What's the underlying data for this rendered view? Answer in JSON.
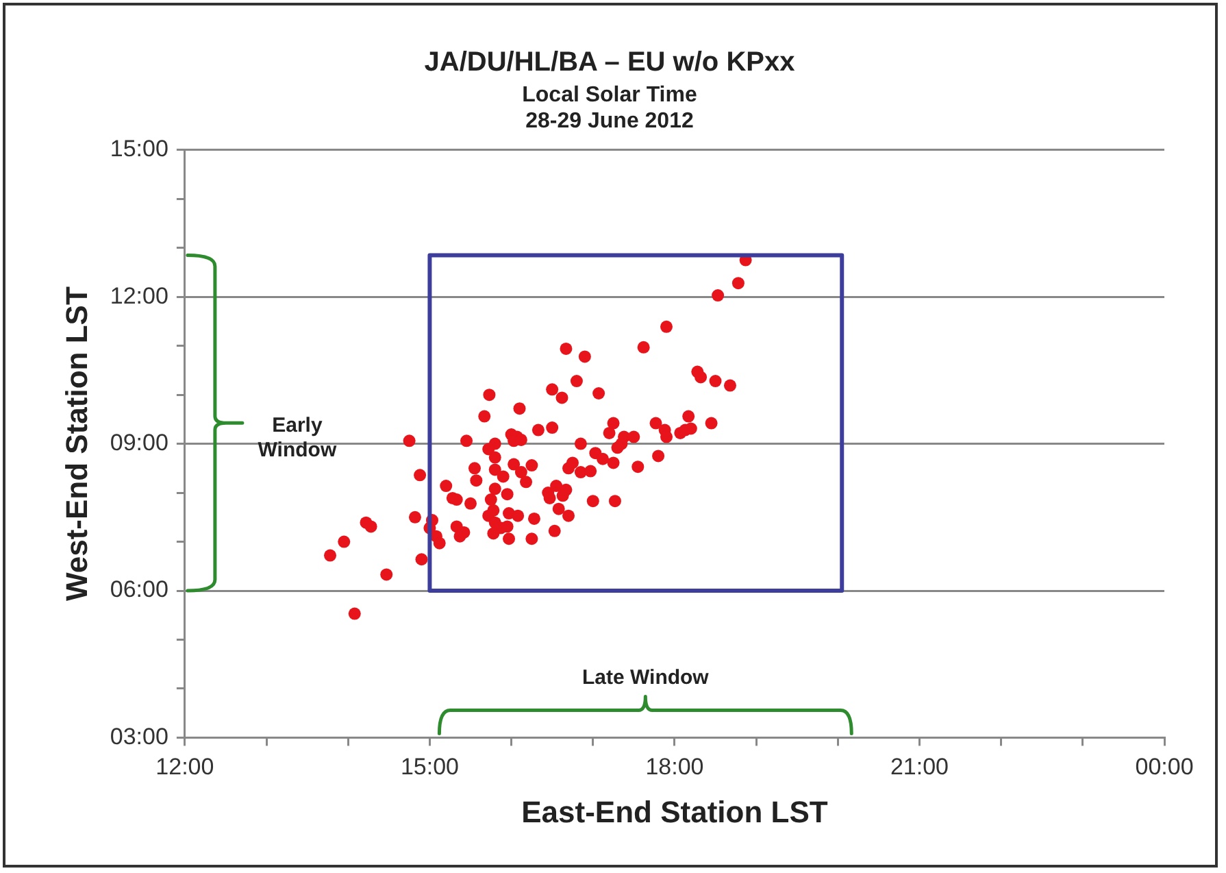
{
  "chart_data": {
    "type": "scatter",
    "title": "JA/DU/HL/BA – EU w/o KPxx",
    "subtitle": "Local Solar Time\n28-29 June 2012",
    "xlabel": "East-End Station LST",
    "ylabel": "West-End Station LST",
    "xlim": [
      12,
      24
    ],
    "xticks": [
      {
        "value": 12,
        "label": "12:00"
      },
      {
        "value": 13,
        "label": null
      },
      {
        "value": 14,
        "label": null
      },
      {
        "value": 15,
        "label": "15:00"
      },
      {
        "value": 16,
        "label": null
      },
      {
        "value": 17,
        "label": null
      },
      {
        "value": 18,
        "label": "18:00"
      },
      {
        "value": 19,
        "label": null
      },
      {
        "value": 20,
        "label": null
      },
      {
        "value": 21,
        "label": "21:00"
      },
      {
        "value": 22,
        "label": null
      },
      {
        "value": 23,
        "label": null
      },
      {
        "value": 24,
        "label": "00:00"
      }
    ],
    "ylim": [
      3,
      15
    ],
    "yticks": [
      {
        "value": 3,
        "label": "03:00"
      },
      {
        "value": 4,
        "label": null
      },
      {
        "value": 5,
        "label": null
      },
      {
        "value": 6,
        "label": "06:00"
      },
      {
        "value": 7,
        "label": null
      },
      {
        "value": 8,
        "label": null
      },
      {
        "value": 9,
        "label": "09:00"
      },
      {
        "value": 10,
        "label": null
      },
      {
        "value": 11,
        "label": null
      },
      {
        "value": 12,
        "label": "12:00"
      },
      {
        "value": 13,
        "label": null
      },
      {
        "value": 14,
        "label": null
      },
      {
        "value": 15,
        "label": "15:00"
      }
    ],
    "grid": "y",
    "marker": "circle",
    "legend": false,
    "annotations": [
      "Early\nWindow",
      "Late Window"
    ],
    "series": [
      {
        "color": "#e8141b",
        "x": [
          13.78,
          13.95,
          14.22,
          14.28,
          14.47,
          14.08,
          14.75,
          16.67,
          16.5,
          16.62,
          15.73,
          16.1,
          15.67,
          16.33,
          16.5,
          16.0,
          16.07,
          16.03,
          16.12,
          15.45,
          15.8,
          15.72,
          15.8,
          15.55,
          15.57,
          15.8,
          16.03,
          16.12,
          16.25,
          16.18,
          15.9,
          14.88,
          15.2,
          15.28,
          15.33,
          15.5,
          15.8,
          15.75,
          15.95,
          16.45,
          16.55,
          16.63,
          16.7,
          15.78,
          15.72,
          15.97,
          16.08,
          16.28,
          16.7,
          15.8,
          15.87,
          15.95,
          15.33,
          15.37,
          15.42,
          15.78,
          15.97,
          16.25,
          16.53,
          14.82,
          15.03,
          15.0,
          15.08,
          15.12,
          14.9,
          18.87,
          18.78,
          18.53,
          17.9,
          17.62,
          16.9,
          16.8,
          17.07,
          18.28,
          18.32,
          18.5,
          18.68,
          17.25,
          17.2,
          17.38,
          17.5,
          17.35,
          17.3,
          17.77,
          17.88,
          17.9,
          18.07,
          18.13,
          18.2,
          18.17,
          18.45,
          16.85,
          17.03,
          17.12,
          17.25,
          17.8,
          17.55,
          16.75,
          16.85,
          16.97,
          16.67,
          16.47,
          17.0,
          17.27,
          16.58
        ],
        "values": [
          6.72,
          7.0,
          7.39,
          7.31,
          6.33,
          5.53,
          9.06,
          10.94,
          10.11,
          9.94,
          10.0,
          9.72,
          9.56,
          9.28,
          9.33,
          9.19,
          9.14,
          9.06,
          9.08,
          9.06,
          9.0,
          8.89,
          8.72,
          8.5,
          8.25,
          8.47,
          8.58,
          8.42,
          8.56,
          8.22,
          8.33,
          8.36,
          8.14,
          7.89,
          7.86,
          7.78,
          8.08,
          7.86,
          7.97,
          8.0,
          8.14,
          7.94,
          8.5,
          7.64,
          7.53,
          7.58,
          7.53,
          7.47,
          7.53,
          7.39,
          7.28,
          7.31,
          7.31,
          7.11,
          7.19,
          7.17,
          7.06,
          7.06,
          7.22,
          7.5,
          7.44,
          7.28,
          7.11,
          6.97,
          6.64,
          12.75,
          12.28,
          12.03,
          11.39,
          10.97,
          10.78,
          10.28,
          10.03,
          10.47,
          10.36,
          10.28,
          10.19,
          9.42,
          9.22,
          9.14,
          9.14,
          9.0,
          8.92,
          9.42,
          9.28,
          9.14,
          9.22,
          9.28,
          9.31,
          9.56,
          9.42,
          9.0,
          8.81,
          8.69,
          8.61,
          8.75,
          8.53,
          8.61,
          8.42,
          8.44,
          8.06,
          7.89,
          7.83,
          7.83,
          7.67
        ]
      }
    ]
  }
}
